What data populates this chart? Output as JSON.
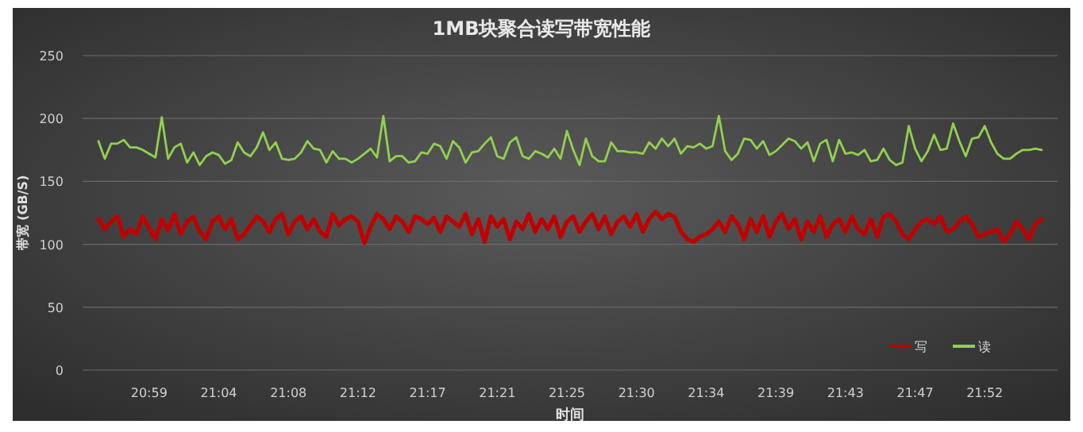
{
  "chart_data": {
    "type": "line",
    "title": "1MB块聚合读写带宽性能",
    "xlabel": "时间",
    "ylabel": "带宽 (GB/S)",
    "categories": [
      null,
      null,
      null,
      null,
      null,
      null,
      null,
      null,
      "20:59",
      null,
      null,
      null,
      null,
      null,
      null,
      null,
      null,
      null,
      null,
      "21:04",
      null,
      null,
      null,
      null,
      null,
      null,
      null,
      null,
      null,
      null,
      "21:08",
      null,
      null,
      null,
      null,
      null,
      null,
      null,
      null,
      null,
      null,
      "21:12",
      null,
      null,
      null,
      null,
      null,
      null,
      null,
      null,
      null,
      null,
      "21:17",
      null,
      null,
      null,
      null,
      null,
      null,
      null,
      null,
      null,
      null,
      "21:21",
      null,
      null,
      null,
      null,
      null,
      null,
      null,
      null,
      null,
      null,
      "21:25",
      null,
      null,
      null,
      null,
      null,
      null,
      null,
      null,
      null,
      null,
      "21:30",
      null,
      null,
      null,
      null,
      null,
      null,
      null,
      null,
      null,
      null,
      "21:34",
      null,
      null,
      null,
      null,
      null,
      null,
      null,
      null,
      null,
      null,
      "21:39",
      null,
      null,
      null,
      null,
      null,
      null,
      null,
      null,
      null,
      null,
      "21:43",
      null,
      null,
      null,
      null,
      null,
      null,
      null,
      null,
      null,
      null,
      "21:47",
      null,
      null,
      null,
      null,
      null,
      null,
      null,
      null,
      null,
      null,
      "21:52",
      null,
      null,
      null,
      null,
      null,
      null,
      null,
      null,
      null
    ],
    "series": [
      {
        "name": "写",
        "color": "#c00000",
        "values": [
          120,
          112,
          118,
          122,
          106,
          112,
          108,
          122,
          113,
          104,
          120,
          111,
          124,
          108,
          118,
          122,
          110,
          104,
          118,
          122,
          112,
          120,
          104,
          108,
          115,
          122,
          118,
          110,
          120,
          124,
          108,
          118,
          122,
          112,
          120,
          110,
          106,
          124,
          115,
          120,
          122,
          118,
          101,
          114,
          124,
          120,
          112,
          122,
          118,
          110,
          122,
          120,
          116,
          121,
          110,
          122,
          118,
          114,
          124,
          108,
          120,
          102,
          122,
          114,
          120,
          104,
          118,
          112,
          124,
          110,
          120,
          112,
          122,
          106,
          118,
          122,
          110,
          118,
          124,
          112,
          122,
          108,
          118,
          122,
          114,
          124,
          110,
          120,
          126,
          120,
          124,
          122,
          110,
          104,
          102,
          106,
          108,
          112,
          118,
          110,
          122,
          116,
          104,
          120,
          110,
          122,
          106,
          118,
          124,
          112,
          120,
          104,
          118,
          110,
          122,
          106,
          116,
          120,
          110,
          122,
          112,
          108,
          120,
          106,
          122,
          124,
          118,
          108,
          104,
          112,
          118,
          120,
          116,
          122,
          110,
          112,
          118,
          122,
          116,
          106,
          108,
          110,
          112,
          102,
          108,
          118,
          112,
          104,
          116,
          120
        ]
      },
      {
        "name": "读",
        "color": "#92d050",
        "values": [
          182,
          168,
          180,
          180,
          183,
          177,
          177,
          175,
          172,
          169,
          201,
          168,
          177,
          180,
          165,
          173,
          163,
          170,
          173,
          171,
          164,
          167,
          181,
          173,
          170,
          177,
          189,
          175,
          181,
          168,
          167,
          168,
          173,
          182,
          176,
          175,
          165,
          174,
          168,
          168,
          165,
          168,
          172,
          176,
          169,
          202,
          166,
          170,
          170,
          165,
          166,
          173,
          172,
          180,
          178,
          168,
          182,
          177,
          165,
          173,
          174,
          180,
          185,
          170,
          168,
          181,
          185,
          170,
          168,
          174,
          172,
          169,
          176,
          168,
          190,
          175,
          163,
          184,
          170,
          166,
          166,
          181,
          174,
          174,
          173,
          173,
          172,
          181,
          176,
          184,
          178,
          184,
          172,
          178,
          177,
          180,
          176,
          178,
          202,
          174,
          167,
          172,
          184,
          183,
          176,
          182,
          171,
          174,
          179,
          184,
          182,
          176,
          181,
          166,
          180,
          183,
          166,
          183,
          172,
          173,
          171,
          175,
          166,
          167,
          176,
          167,
          163,
          165,
          194,
          176,
          166,
          174,
          187,
          175,
          176,
          196,
          182,
          170,
          184,
          185,
          194,
          181,
          172,
          168,
          168,
          172,
          175,
          175,
          176,
          175
        ]
      }
    ],
    "ylim": [
      0,
      250
    ],
    "yticks": [
      0,
      50,
      100,
      150,
      200,
      250
    ],
    "grid": "y",
    "legend": "bottom right"
  }
}
